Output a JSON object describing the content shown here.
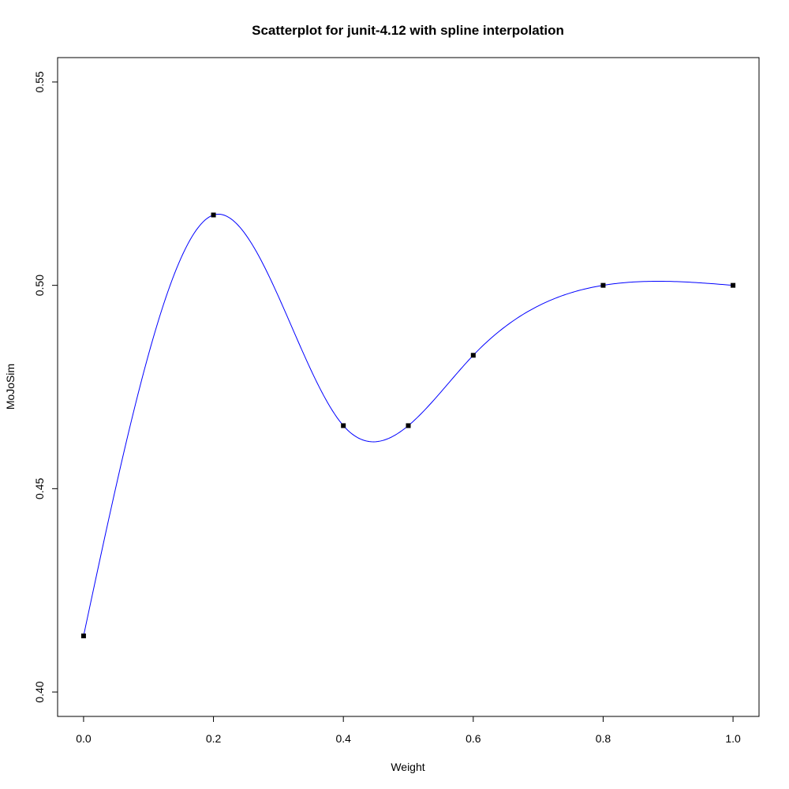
{
  "chart_data": {
    "type": "scatter",
    "title": "Scatterplot for junit-4.12 with spline interpolation",
    "xlabel": "Weight",
    "ylabel": "MoJoSim",
    "xlim": [
      -0.04,
      1.04
    ],
    "ylim": [
      0.394,
      0.556
    ],
    "x_ticks": [
      0.0,
      0.2,
      0.4,
      0.6,
      0.8,
      1.0
    ],
    "x_tick_labels": [
      "0.0",
      "0.2",
      "0.4",
      "0.6",
      "0.8",
      "1.0"
    ],
    "y_ticks": [
      0.4,
      0.45,
      0.5,
      0.55
    ],
    "y_tick_labels": [
      "0.40",
      "0.45",
      "0.50",
      "0.55"
    ],
    "grid": false,
    "legend": "none",
    "series": [
      {
        "x": [
          0.0,
          0.2,
          0.4,
          0.5,
          0.6,
          0.8,
          1.0
        ],
        "y": [
          0.4138,
          0.5173,
          0.4655,
          0.4655,
          0.4828,
          0.5,
          0.5
        ],
        "marker": "square",
        "marker_color": "#000000",
        "line": "spline",
        "line_color": "#0000ff"
      }
    ]
  }
}
